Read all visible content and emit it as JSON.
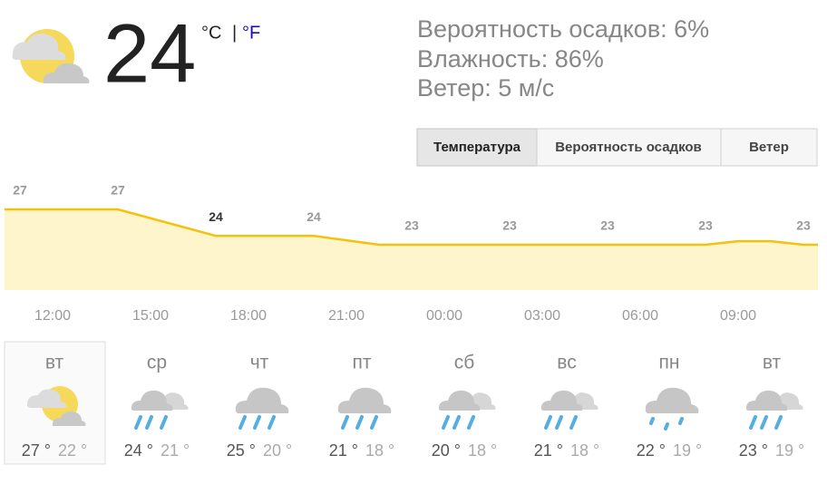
{
  "current": {
    "temp": "24",
    "unit_c": "°C",
    "separator": "|",
    "unit_f": "°F"
  },
  "details": [
    "Вероятность осадков: 6%",
    "Влажность: 86%",
    "Ветер: 5 м/с"
  ],
  "tabs": [
    "Температура",
    "Вероятность осадков",
    "Ветер"
  ],
  "chart": {
    "type": "area",
    "values": [
      27,
      27,
      27,
      27,
      26,
      25,
      24,
      24,
      24,
      24,
      23.5,
      23,
      23,
      23,
      23,
      23,
      23,
      23,
      23,
      23,
      23,
      23,
      23.4,
      23.4,
      23
    ],
    "value_labels": [
      "27",
      null,
      null,
      "27",
      null,
      null,
      "24",
      null,
      null,
      "24",
      null,
      null,
      "23",
      null,
      null,
      "23",
      null,
      null,
      "23",
      null,
      null,
      "23",
      null,
      null,
      "23"
    ],
    "times": [
      "12:00",
      "15:00",
      "18:00",
      "21:00",
      "00:00",
      "03:00",
      "06:00",
      "09:00"
    ],
    "line_color": "#f4c20d",
    "fill_color": "#fff5cc"
  },
  "days": [
    {
      "name": "вт",
      "hi": "27 °",
      "lo": "22 °"
    },
    {
      "name": "ср",
      "hi": "24 °",
      "lo": "21 °"
    },
    {
      "name": "чт",
      "hi": "25 °",
      "lo": "20 °"
    },
    {
      "name": "пт",
      "hi": "21 °",
      "lo": "18 °"
    },
    {
      "name": "сб",
      "hi": "20 °",
      "lo": "18 °"
    },
    {
      "name": "вс",
      "hi": "21 °",
      "lo": "18 °"
    },
    {
      "name": "пн",
      "hi": "22 °",
      "lo": "19 °"
    },
    {
      "name": "вт",
      "hi": "23 °",
      "lo": "19 °"
    }
  ]
}
